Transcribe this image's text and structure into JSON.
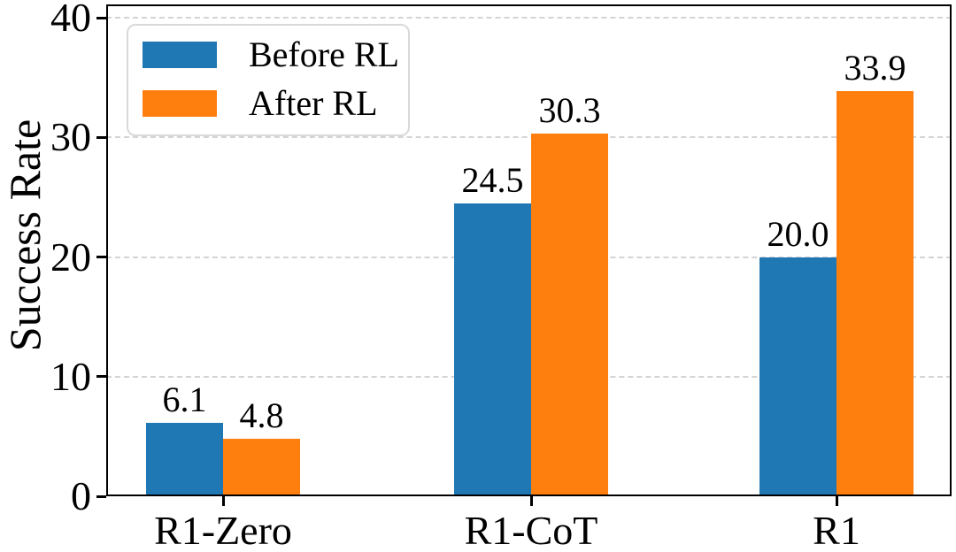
{
  "chart_data": {
    "type": "bar",
    "title": "",
    "categories": [
      "R1-Zero",
      "R1-CoT",
      "R1"
    ],
    "series": [
      {
        "name": "Before RL",
        "color": "#1f77b4",
        "values": [
          6.1,
          24.5,
          20.0
        ],
        "value_labels": [
          "6.1",
          "24.5",
          "20.0"
        ]
      },
      {
        "name": "After RL",
        "color": "#ff7f0e",
        "values": [
          4.8,
          30.3,
          33.9
        ],
        "value_labels": [
          "4.8",
          "30.3",
          "33.9"
        ]
      }
    ],
    "xlabel": "",
    "ylabel": "Success Rate",
    "ylim": [
      0,
      40
    ],
    "yticks": [
      "0",
      "10",
      "20",
      "30",
      "40"
    ],
    "grid": {
      "axis": "y",
      "style": "dashed",
      "color": "#d4d4d4"
    },
    "legend": {
      "position": "upper-left"
    },
    "axis_color": "#000000"
  }
}
